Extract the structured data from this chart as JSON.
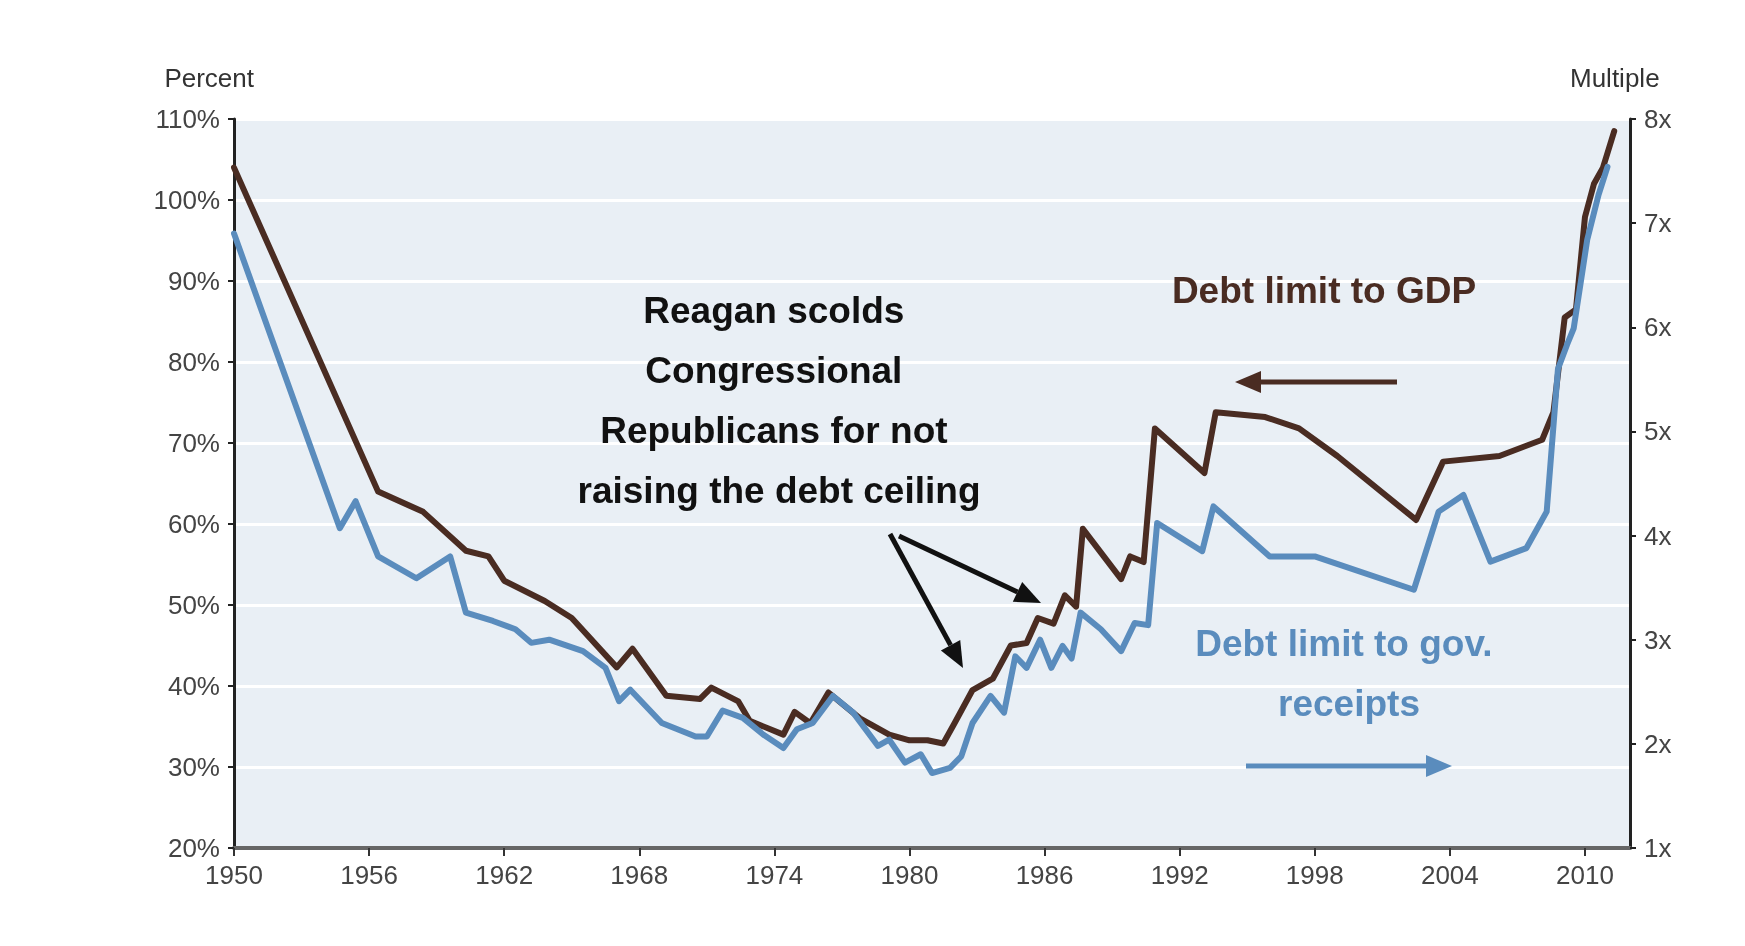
{
  "chart_data": {
    "type": "line",
    "ylabel": "Percent",
    "y2label": "Multiple",
    "xlim": [
      1950,
      2012
    ],
    "xticks": [
      1950,
      1956,
      1962,
      1968,
      1974,
      1980,
      1986,
      1992,
      1998,
      2004,
      2010
    ],
    "ylim": [
      20,
      110
    ],
    "yticks": [
      {
        "value": 20,
        "label": "20%"
      },
      {
        "value": 30,
        "label": "30%"
      },
      {
        "value": 40,
        "label": "40%"
      },
      {
        "value": 50,
        "label": "50%"
      },
      {
        "value": 60,
        "label": "60%"
      },
      {
        "value": 70,
        "label": "70%"
      },
      {
        "value": 80,
        "label": "80%"
      },
      {
        "value": 90,
        "label": "90%"
      },
      {
        "value": 100,
        "label": "100%"
      },
      {
        "value": 110,
        "label": "110%"
      }
    ],
    "y2lim": [
      1,
      8
    ],
    "y2ticks": [
      {
        "value": 1,
        "label": "1x"
      },
      {
        "value": 2,
        "label": "2x"
      },
      {
        "value": 3,
        "label": "3x"
      },
      {
        "value": 4,
        "label": "4x"
      },
      {
        "value": 5,
        "label": "5x"
      },
      {
        "value": 6,
        "label": "6x"
      },
      {
        "value": 7,
        "label": "7x"
      },
      {
        "value": 8,
        "label": "8x"
      }
    ],
    "grid": "y",
    "legend": false,
    "marker": "none",
    "line_style": "solid",
    "series": [
      {
        "name": "Debt limit to GDP",
        "color": "#4a2c22",
        "x": [
          1950,
          1956.4,
          1958.4,
          1960.3,
          1961.3,
          1962,
          1963.8,
          1965,
          1967,
          1967.7,
          1969.2,
          1970.7,
          1971.2,
          1972.4,
          1972.9,
          1974.4,
          1974.9,
          1975.6,
          1976.4,
          1977.8,
          1979.1,
          1980,
          1980.8,
          1981.5,
          1982,
          1982.8,
          1983.7,
          1984.5,
          1985.2,
          1985.7,
          1986.4,
          1986.9,
          1987.4,
          1987.7,
          1989.4,
          1989.8,
          1990.4,
          1990.9,
          1993.1,
          1993.6,
          1995.8,
          1997.3,
          1999,
          2002.5,
          2003.7,
          2006.2,
          2008.1,
          2008.6,
          2009.1,
          2009.6,
          2010,
          2010.4,
          2010.8,
          2011.3
        ],
        "values": [
          104,
          64,
          61.5,
          56.7,
          56,
          53,
          50.5,
          48.4,
          42.3,
          44.6,
          38.8,
          38.4,
          39.8,
          38.1,
          35.7,
          34,
          36.8,
          35.4,
          39.2,
          36,
          34,
          33.3,
          33.3,
          32.9,
          35.4,
          39.5,
          40.9,
          45,
          45.3,
          48.4,
          47.7,
          51.2,
          49.8,
          59.4,
          53.2,
          56,
          55.3,
          71.8,
          66.3,
          73.8,
          73.2,
          71.8,
          68.4,
          60.5,
          67.7,
          68.4,
          70.4,
          73.8,
          85.5,
          86.5,
          97.9,
          102,
          104,
          108.5
        ]
      },
      {
        "name": "Debt limit to gov. receipts",
        "color": "#5a8cbd",
        "axis": "y2",
        "x": [
          1950,
          1954.7,
          1955.4,
          1956.4,
          1958.1,
          1959.6,
          1960.3,
          1961.5,
          1962.5,
          1963.2,
          1964,
          1965.5,
          1966.5,
          1967.1,
          1967.6,
          1969,
          1970.5,
          1971,
          1971.7,
          1972.6,
          1973.5,
          1974.4,
          1975,
          1975.7,
          1976.6,
          1977.5,
          1978.6,
          1979.1,
          1979.8,
          1980.5,
          1981,
          1981.8,
          1982.3,
          1982.8,
          1983.6,
          1984.2,
          1984.7,
          1985.2,
          1985.8,
          1986.3,
          1986.8,
          1987.2,
          1987.6,
          1988.5,
          1989.4,
          1990,
          1990.6,
          1991,
          1993,
          1993.5,
          1996,
          1998,
          2002.4,
          2003.5,
          2004.6,
          2005.8,
          2007.4,
          2008.3,
          2008.8,
          2009.2,
          2009.5,
          2010.1,
          2010.6,
          2011
        ],
        "values": [
          6.9,
          4.07,
          4.33,
          3.8,
          3.59,
          3.8,
          3.26,
          3.18,
          3.1,
          2.97,
          3.0,
          2.89,
          2.73,
          2.41,
          2.52,
          2.2,
          2.07,
          2.07,
          2.32,
          2.25,
          2.09,
          1.96,
          2.14,
          2.2,
          2.46,
          2.3,
          1.98,
          2.04,
          1.82,
          1.9,
          1.72,
          1.77,
          1.88,
          2.2,
          2.46,
          2.3,
          2.84,
          2.73,
          3.0,
          2.73,
          2.94,
          2.82,
          3.26,
          3.1,
          2.89,
          3.16,
          3.14,
          4.12,
          3.85,
          4.28,
          3.8,
          3.8,
          3.48,
          4.23,
          4.39,
          3.75,
          3.88,
          4.23,
          5.6,
          5.83,
          5.99,
          6.84,
          7.27,
          7.54
        ]
      }
    ],
    "annotations": [
      "Reagan scolds Congressional Republicans for not raising the debt ceiling"
    ]
  }
}
